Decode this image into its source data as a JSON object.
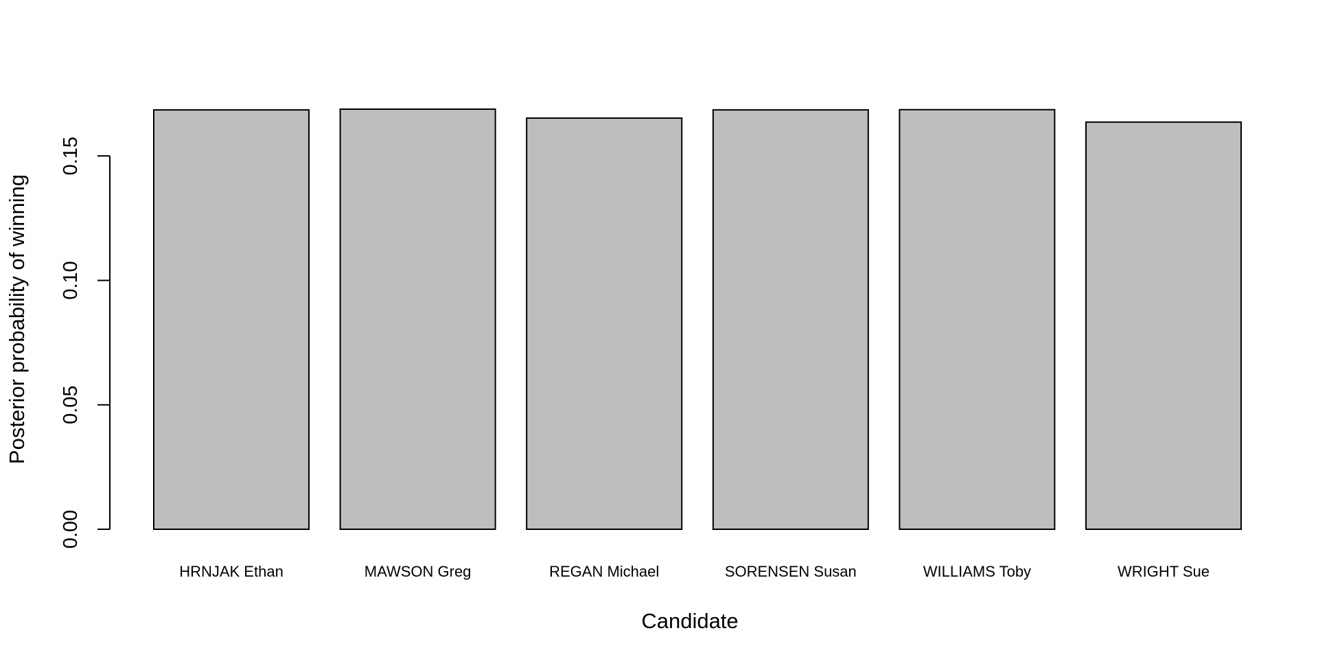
{
  "chart_data": {
    "type": "bar",
    "title": "",
    "xlabel": "Candidate",
    "ylabel": "Posterior probability of winning",
    "categories": [
      "HRNJAK Ethan",
      "MAWSON Greg",
      "REGAN Michael",
      "SORENSEN Susan",
      "WILLIAMS Toby",
      "WRIGHT Sue"
    ],
    "values": [
      0.1685,
      0.1688,
      0.1652,
      0.1685,
      0.1686,
      0.1636
    ],
    "ylim": [
      0,
      0.1688
    ],
    "yticks": [
      "0.00",
      "0.05",
      "0.10",
      "0.15"
    ],
    "ytick_values": [
      0,
      0.05,
      0.1,
      0.15
    ],
    "grid": false,
    "bar_color": "#bebebe",
    "bar_edge_color": "#000000"
  }
}
